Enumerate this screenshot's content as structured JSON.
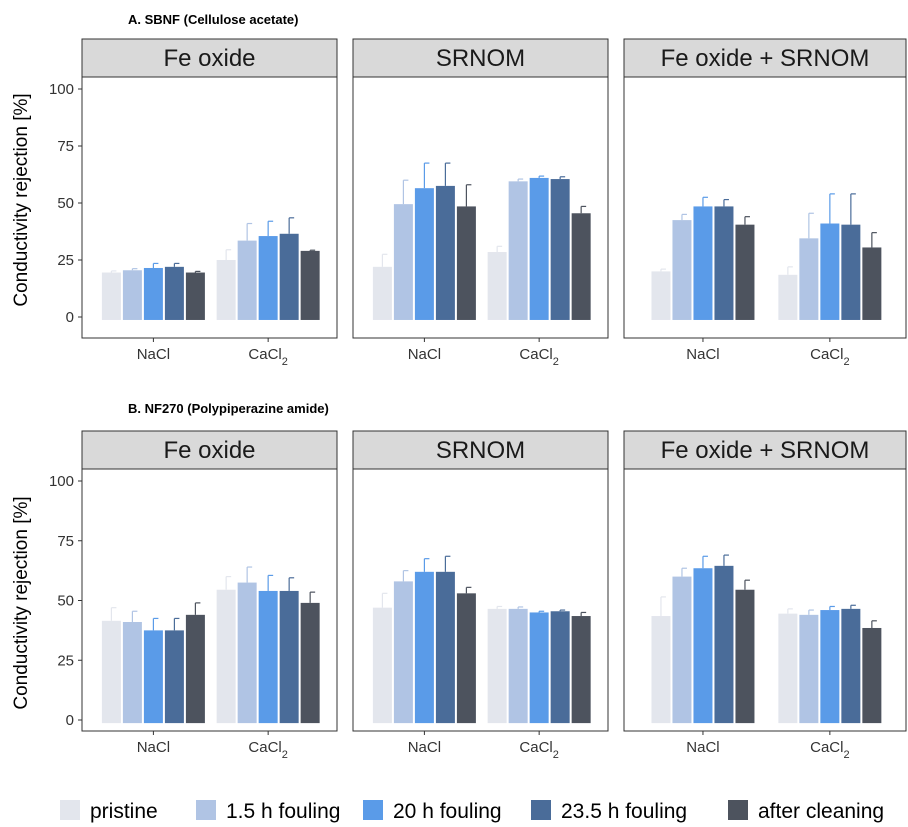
{
  "colors": {
    "pristine": "#e3e6ed",
    "1.5 h fouling": "#b0c4e4",
    "20 h fouling": "#5a9be8",
    "23.5 h fouling": "#4a6c99",
    "after cleaning": "#4d535e",
    "strip_fill": "#d9d9d9"
  },
  "legend": [
    "pristine",
    "1.5 h fouling",
    "20 h fouling",
    "23.5 h fouling",
    "after cleaning"
  ],
  "chart_data": [
    {
      "type": "bar",
      "title": "A. SBNF (Cellulose acetate)",
      "ylabel": "Conductivity rejection [%]",
      "ylim": [
        -3,
        107
      ],
      "yticks": [
        0,
        25,
        50,
        75,
        100
      ],
      "categories": [
        "NaCl",
        "CaCl2"
      ],
      "series_names": [
        "pristine",
        "1.5 h fouling",
        "20 h fouling",
        "23.5 h fouling",
        "after cleaning"
      ],
      "facets": [
        {
          "label": "Fe oxide",
          "values": [
            [
              19.5,
              20.5,
              21.5,
              22,
              19.5
            ],
            [
              25,
              33.5,
              35.5,
              36.5,
              29
            ]
          ],
          "errors": [
            [
              0.7,
              0.7,
              2.0,
              1.5,
              0.5
            ],
            [
              4.5,
              7.5,
              6.5,
              7.0,
              0.3
            ]
          ]
        },
        {
          "label": "SRNOM",
          "values": [
            [
              22,
              49.5,
              56.5,
              57.5,
              48.5
            ],
            [
              28.5,
              59.5,
              61,
              60.5,
              45.5
            ]
          ],
          "errors": [
            [
              5.5,
              10.5,
              11,
              10,
              9.5
            ],
            [
              2.5,
              1.0,
              0.8,
              1.0,
              3.0
            ]
          ]
        },
        {
          "label": "Fe oxide + SRNOM",
          "values": [
            [
              20,
              42.5,
              48.5,
              48.5,
              40.5
            ],
            [
              18.5,
              34.5,
              41,
              40.5,
              30.5
            ]
          ],
          "errors": [
            [
              1.0,
              2.5,
              4.0,
              3.0,
              3.5
            ],
            [
              3.5,
              11,
              13,
              13.5,
              6.5
            ]
          ]
        }
      ]
    },
    {
      "type": "bar",
      "title": "B. NF270 (Polypiperazine amide)",
      "ylabel": "Conductivity rejection [%]",
      "ylim": [
        -3,
        107
      ],
      "yticks": [
        0,
        25,
        50,
        75,
        100
      ],
      "categories": [
        "NaCl",
        "CaCl2"
      ],
      "series_names": [
        "pristine",
        "1.5 h fouling",
        "20 h fouling",
        "23.5 h fouling",
        "after cleaning"
      ],
      "facets": [
        {
          "label": "Fe oxide",
          "values": [
            [
              41.5,
              41,
              37.5,
              37.5,
              44
            ],
            [
              54.5,
              57.5,
              54,
              54,
              49
            ]
          ],
          "errors": [
            [
              5.5,
              4.5,
              5.0,
              5.0,
              5.0
            ],
            [
              5.5,
              6.5,
              6.5,
              5.5,
              4.5
            ]
          ]
        },
        {
          "label": "SRNOM",
          "values": [
            [
              47,
              58,
              62,
              62,
              53
            ],
            [
              46.5,
              46.5,
              45,
              45.5,
              43.5
            ]
          ],
          "errors": [
            [
              6,
              4.5,
              5.5,
              6.5,
              2.5
            ],
            [
              1.0,
              0.8,
              0.5,
              0.5,
              1.5
            ]
          ]
        },
        {
          "label": "Fe oxide + SRNOM",
          "values": [
            [
              43.5,
              60,
              63.5,
              64.5,
              54.5
            ],
            [
              44.5,
              44,
              46,
              46.5,
              38.5
            ]
          ],
          "errors": [
            [
              8,
              3.5,
              5.0,
              4.5,
              4.0
            ],
            [
              2.0,
              2.0,
              1.5,
              1.5,
              3.0
            ]
          ]
        }
      ]
    }
  ]
}
